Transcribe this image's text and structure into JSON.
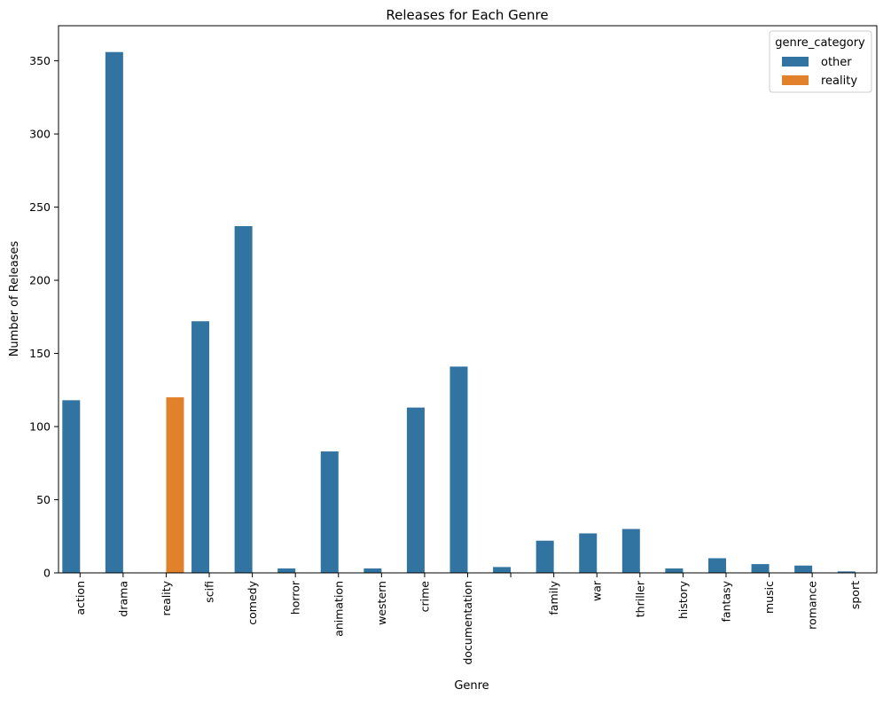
{
  "chart_data": {
    "type": "bar",
    "title": "Releases for Each Genre",
    "xlabel": "Genre",
    "ylabel": "Number of Releases",
    "ylim": [
      0,
      374
    ],
    "yticks": [
      0,
      50,
      100,
      150,
      200,
      250,
      300,
      350
    ],
    "grid": false,
    "legend_placement": "top-right",
    "legend_title": "genre_category",
    "categories": [
      "action",
      "drama",
      "reality",
      "scifi",
      "comedy",
      "horror",
      "animation",
      "western",
      "crime",
      "documentation",
      "",
      "family",
      "war",
      "thriller",
      "history",
      "fantasy",
      "music",
      "romance",
      "sport"
    ],
    "series": [
      {
        "name": "other",
        "color": "#3274a1",
        "values": [
          118,
          356,
          0,
          172,
          237,
          3,
          83,
          3,
          113,
          141,
          4,
          22,
          27,
          30,
          3,
          10,
          6,
          5,
          1
        ]
      },
      {
        "name": "reality",
        "color": "#e1812c",
        "values": [
          0,
          0,
          120,
          0,
          0,
          0,
          0,
          0,
          0,
          0,
          0,
          0,
          0,
          0,
          0,
          0,
          0,
          0,
          0
        ]
      }
    ]
  }
}
